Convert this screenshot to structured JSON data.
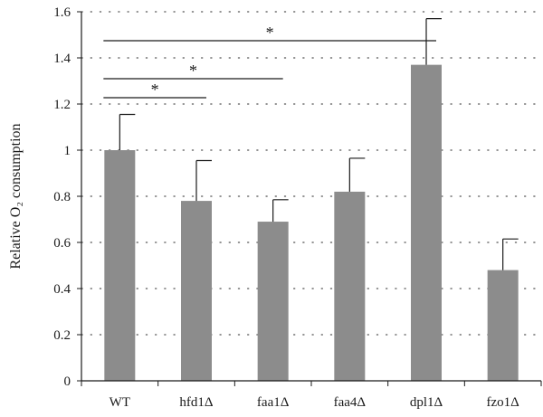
{
  "chart_data": {
    "type": "bar",
    "title": "",
    "xlabel": "",
    "ylabel": "Relative O₂ consumption",
    "ylim": [
      0,
      1.6
    ],
    "yticks": [
      "0",
      "0.2",
      "0.4",
      "0.6",
      "0.8",
      "1",
      "1.2",
      "1.4",
      "1.6"
    ],
    "categories": [
      "WT",
      "hfd1Δ",
      "faa1Δ",
      "faa4Δ",
      "dpl1Δ",
      "fzo1Δ"
    ],
    "values": [
      1.0,
      0.78,
      0.69,
      0.82,
      1.37,
      0.48
    ],
    "errors": [
      0.155,
      0.175,
      0.095,
      0.145,
      0.2,
      0.135
    ],
    "significance": [
      {
        "from": "WT",
        "to": "hfd1Δ",
        "label": "*"
      },
      {
        "from": "WT",
        "to": "faa1Δ",
        "label": "*"
      },
      {
        "from": "WT",
        "to": "dpl1Δ",
        "label": "*"
      }
    ],
    "grid": "horizontal dotted",
    "colors": {
      "bar": "#8c8c8c",
      "axis": "#1a1a1a",
      "grid": "#555555"
    }
  }
}
